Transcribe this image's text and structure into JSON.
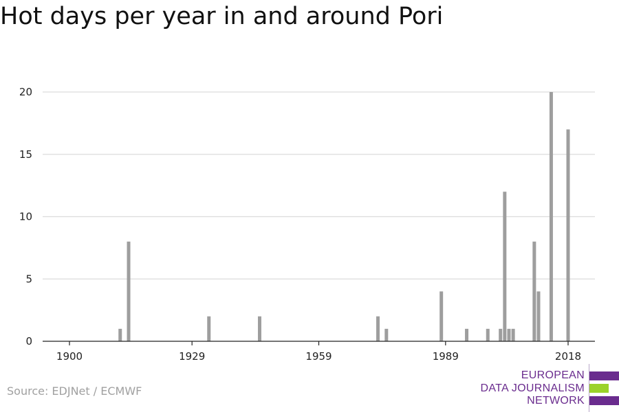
{
  "title": "Hot days per year in and around Pori",
  "source": "Source: EDJNet / ECMWF",
  "logo": {
    "lines": [
      "EUROPEAN",
      "DATA JOURNALISM",
      "NETWORK"
    ],
    "colors": {
      "purple": "#6a2c8e",
      "green": "#9bd22a"
    }
  },
  "chart_data": {
    "type": "bar",
    "title": "Hot days per year in and around Pori",
    "xlabel": "",
    "ylabel": "",
    "xlim": [
      1900,
      2018
    ],
    "ylim": [
      0,
      20
    ],
    "xticks": [
      1900,
      1929,
      1959,
      1989,
      2018
    ],
    "yticks": [
      0,
      5,
      10,
      15,
      20
    ],
    "grid": true,
    "bar_color": "#9e9e9e",
    "x": [
      1912,
      1914,
      1933,
      1945,
      1973,
      1975,
      1988,
      1994,
      1999,
      2002,
      2003,
      2004,
      2005,
      2010,
      2011,
      2014,
      2018
    ],
    "values": [
      1,
      8,
      2,
      2,
      2,
      1,
      4,
      1,
      1,
      1,
      12,
      1,
      1,
      8,
      4,
      20,
      17
    ]
  }
}
